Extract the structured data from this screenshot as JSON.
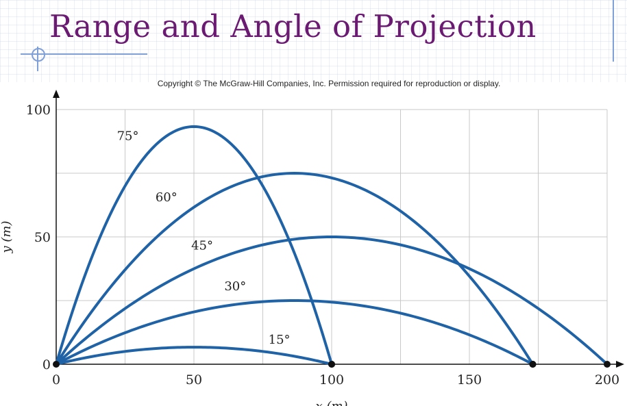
{
  "slide": {
    "title": "Range and Angle of Projection",
    "copyright": "Copyright © The McGraw-Hill Companies, Inc. Permission required for reproduction or display."
  },
  "colors": {
    "title": "#6b1a72",
    "curve": "#1f63a6",
    "grid": "#c8c8c8",
    "accent": "#7f9fd8"
  },
  "chart_data": {
    "type": "line",
    "title": "",
    "xlabel": "x (m)",
    "ylabel": "y (m)",
    "xlim": [
      0,
      200
    ],
    "ylim": [
      0,
      100
    ],
    "x_ticks": [
      0,
      50,
      100,
      150,
      200
    ],
    "y_ticks": [
      0,
      50,
      100
    ],
    "grid": true,
    "series": [
      {
        "name": "15°",
        "launch_angle_deg": 15,
        "range": 100,
        "max_height": 6.7
      },
      {
        "name": "30°",
        "launch_angle_deg": 30,
        "range": 173,
        "max_height": 25
      },
      {
        "name": "45°",
        "launch_angle_deg": 45,
        "range": 200,
        "max_height": 50
      },
      {
        "name": "60°",
        "launch_angle_deg": 60,
        "range": 173,
        "max_height": 75
      },
      {
        "name": "75°",
        "launch_angle_deg": 75,
        "range": 100,
        "max_height": 93.3
      }
    ]
  }
}
